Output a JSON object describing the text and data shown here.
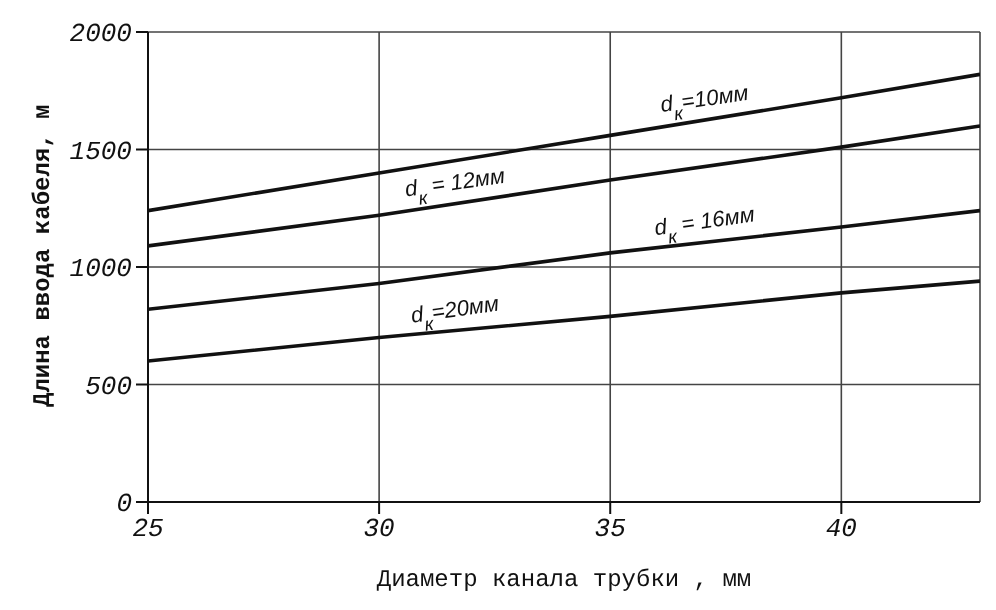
{
  "chart_data": {
    "type": "line",
    "xlabel": "Диаметр канала трубки   , мм",
    "ylabel": "Длина ввода кабеля, м",
    "x": [
      25,
      30,
      35,
      40,
      43
    ],
    "series": [
      {
        "name": "d$_{к}$=10мм",
        "color": "#111111",
        "values": [
          1240,
          1400,
          1560,
          1720,
          1820
        ]
      },
      {
        "name": "d$_{к}$ = 12мм",
        "color": "#111111",
        "values": [
          1090,
          1220,
          1370,
          1510,
          1600
        ]
      },
      {
        "name": "d$_{к}$ = 16мм",
        "color": "#111111",
        "values": [
          820,
          930,
          1060,
          1170,
          1240
        ]
      },
      {
        "name": "d$_{к}$=20мм",
        "color": "#111111",
        "values": [
          600,
          700,
          790,
          890,
          940
        ]
      }
    ],
    "xlim": [
      25,
      43
    ],
    "xticks": [
      25,
      30,
      35,
      40
    ],
    "ylim": [
      0,
      2000
    ],
    "yticks": [
      0,
      500,
      1000,
      1500,
      2000
    ],
    "grid": true,
    "legend": false,
    "marker": "none",
    "line_style": "solid"
  }
}
